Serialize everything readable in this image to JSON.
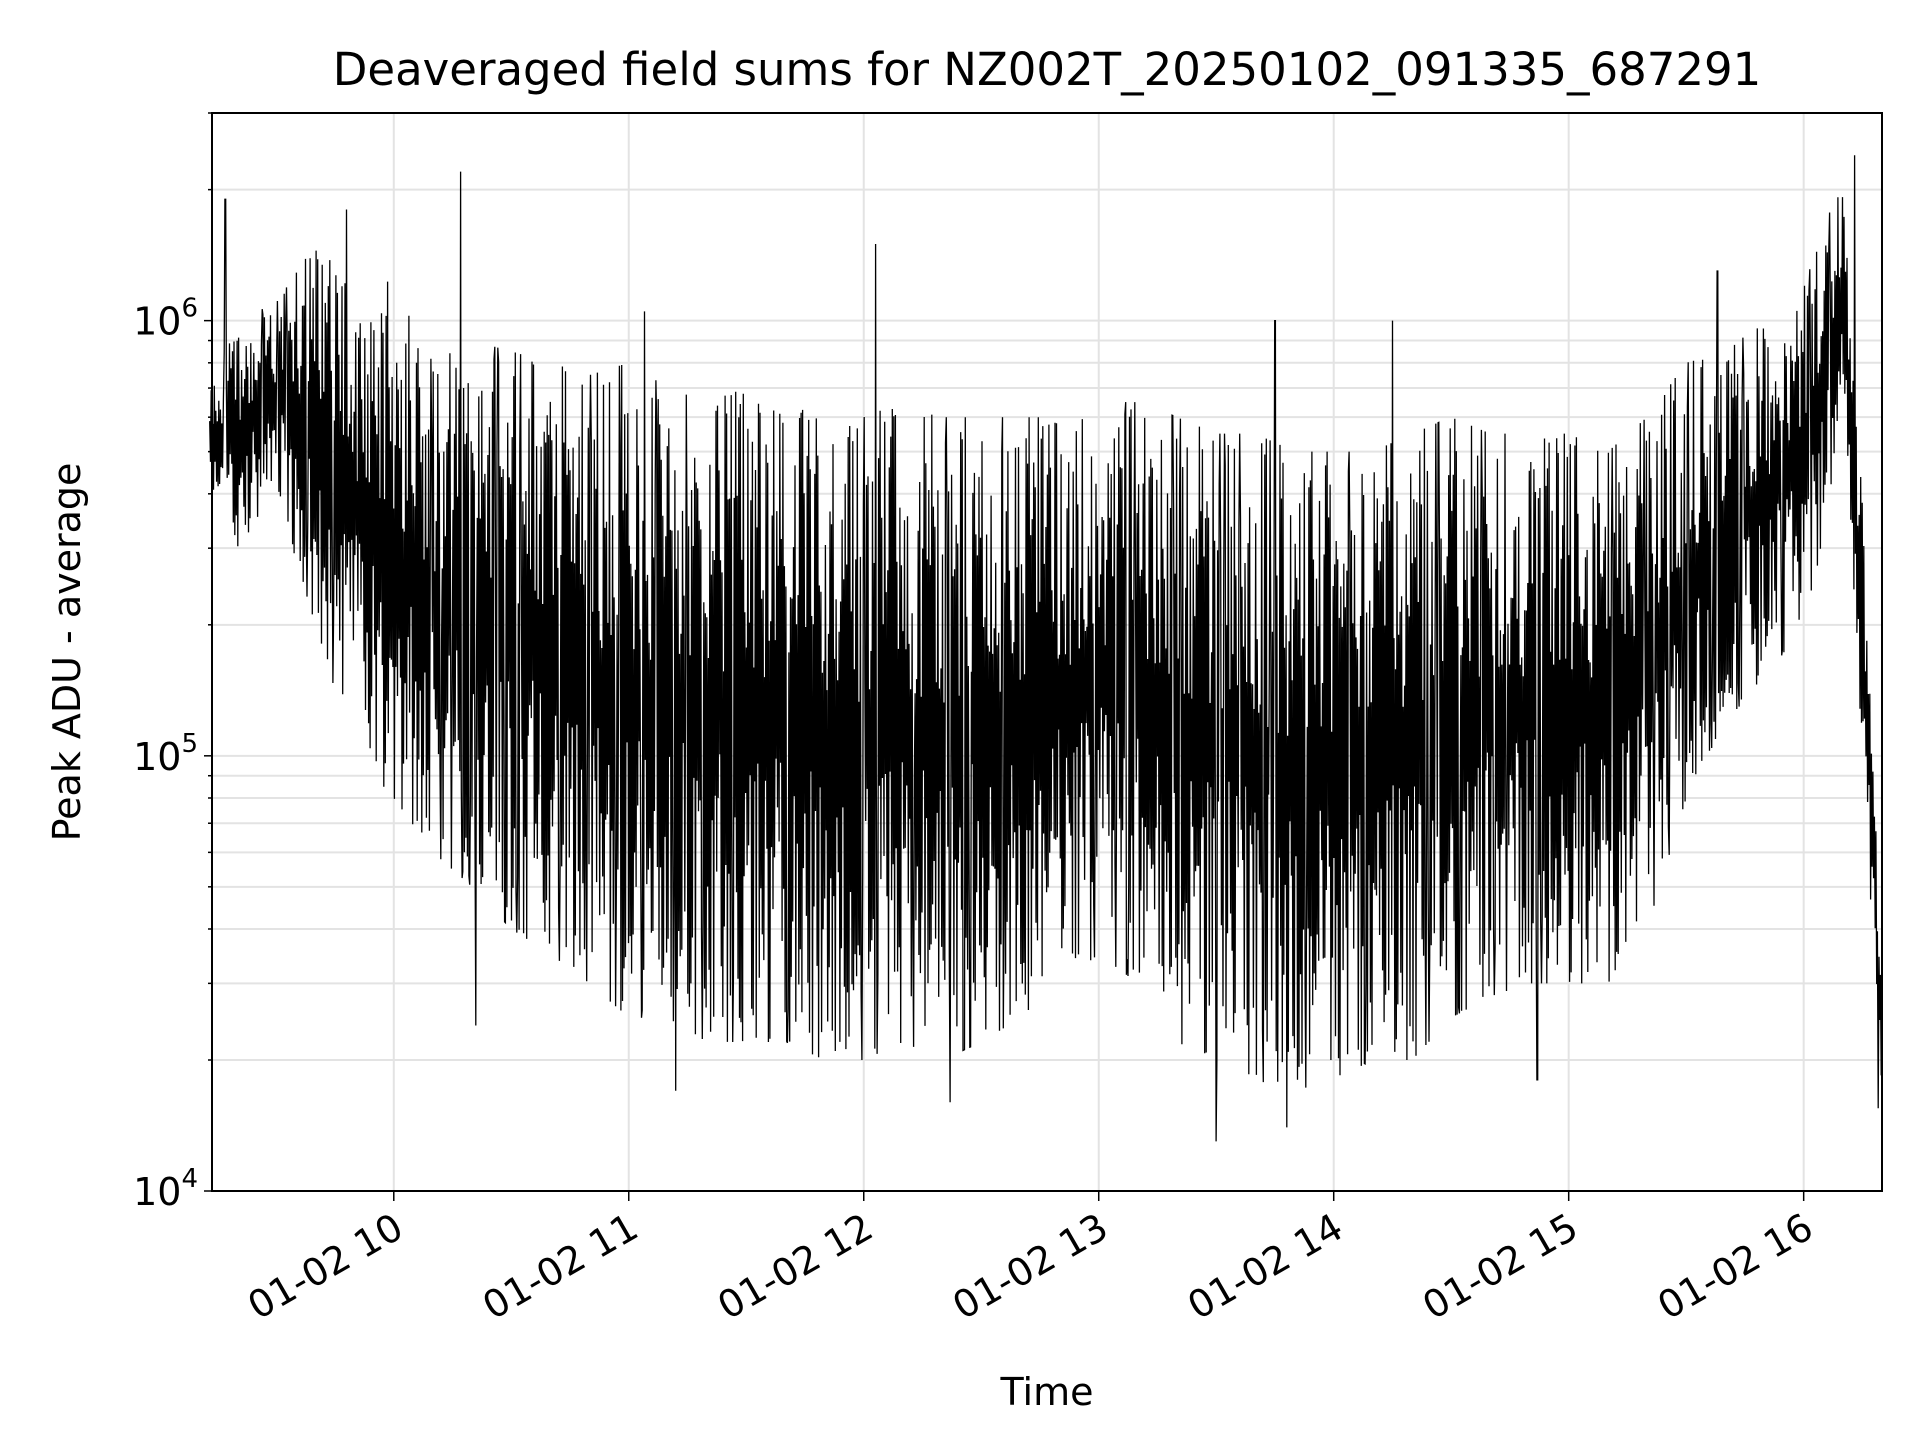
{
  "chart_data": {
    "type": "line",
    "title": "Deaveraged field sums for NZ002T_20250102_091335_687291",
    "xlabel": "Time",
    "ylabel": "Peak ADU - average",
    "yscale": "log",
    "ylim": [
      10000,
      3000000
    ],
    "xlim": [
      "2025-01-02 09:13:35",
      "2025-01-02 16:20:00"
    ],
    "grid": true,
    "x_ticks": [
      {
        "label": "01-02 10",
        "time": "2025-01-02 10:00"
      },
      {
        "label": "01-02 11",
        "time": "2025-01-02 11:00"
      },
      {
        "label": "01-02 12",
        "time": "2025-01-02 12:00"
      },
      {
        "label": "01-02 13",
        "time": "2025-01-02 13:00"
      },
      {
        "label": "01-02 14",
        "time": "2025-01-02 14:00"
      },
      {
        "label": "01-02 15",
        "time": "2025-01-02 15:00"
      },
      {
        "label": "01-02 16",
        "time": "2025-01-02 16:00"
      }
    ],
    "y_ticks": [
      {
        "base": "10",
        "exp": "4",
        "value": 10000
      },
      {
        "base": "10",
        "exp": "5",
        "value": 100000
      },
      {
        "base": "10",
        "exp": "6",
        "value": 1000000
      }
    ],
    "series": [
      {
        "color": "#000000",
        "x": [
          "09:13",
          "09:20",
          "09:30",
          "09:40",
          "09:50",
          "10:00",
          "10:10",
          "10:20",
          "10:30",
          "10:40",
          "10:50",
          "11:00",
          "11:10",
          "11:20",
          "11:30",
          "11:40",
          "11:50",
          "12:00",
          "12:10",
          "12:20",
          "12:30",
          "12:40",
          "12:50",
          "13:00",
          "13:10",
          "13:20",
          "13:30",
          "13:40",
          "13:50",
          "14:00",
          "14:10",
          "14:20",
          "14:30",
          "14:40",
          "14:50",
          "15:00",
          "15:10",
          "15:20",
          "15:30",
          "15:40",
          "15:50",
          "16:00",
          "16:05",
          "16:10",
          "16:15",
          "16:20"
        ],
        "upper": [
          700000,
          1000000,
          1100000,
          1500000,
          1400000,
          1200000,
          800000,
          900000,
          850000,
          800000,
          750000,
          800000,
          700000,
          650000,
          700000,
          650000,
          600000,
          600000,
          650000,
          600000,
          600000,
          600000,
          600000,
          650000,
          650000,
          600000,
          550000,
          550000,
          500000,
          500000,
          500000,
          550000,
          600000,
          550000,
          550000,
          550000,
          500000,
          600000,
          800000,
          850000,
          1000000,
          1200000,
          1600000,
          2200000,
          400000,
          30000
        ],
        "lower": [
          400000,
          300000,
          400000,
          200000,
          100000,
          80000,
          60000,
          50000,
          40000,
          35000,
          30000,
          25000,
          25000,
          22000,
          22000,
          22000,
          20000,
          20000,
          22000,
          20000,
          22000,
          25000,
          30000,
          35000,
          30000,
          22000,
          20000,
          18000,
          17000,
          18000,
          20000,
          20000,
          25000,
          28000,
          30000,
          30000,
          30000,
          40000,
          80000,
          120000,
          150000,
          200000,
          300000,
          700000,
          100000,
          16000
        ],
        "peaks": [
          {
            "x": "09:17",
            "value": 1900000
          },
          {
            "x": "09:48",
            "value": 1800000
          },
          {
            "x": "10:17",
            "value": 2200000
          },
          {
            "x": "11:04",
            "value": 1050000
          },
          {
            "x": "12:03",
            "value": 1500000
          },
          {
            "x": "13:45",
            "value": 1000000
          },
          {
            "x": "14:15",
            "value": 1000000
          },
          {
            "x": "15:38",
            "value": 1300000
          },
          {
            "x": "16:13",
            "value": 2400000
          }
        ],
        "troughs": [
          {
            "x": "10:21",
            "value": 24000
          },
          {
            "x": "11:12",
            "value": 17000
          },
          {
            "x": "12:22",
            "value": 16000
          },
          {
            "x": "13:30",
            "value": 13000
          },
          {
            "x": "13:48",
            "value": 14000
          },
          {
            "x": "14:52",
            "value": 18000
          },
          {
            "x": "16:19",
            "value": 15500
          }
        ]
      }
    ]
  }
}
